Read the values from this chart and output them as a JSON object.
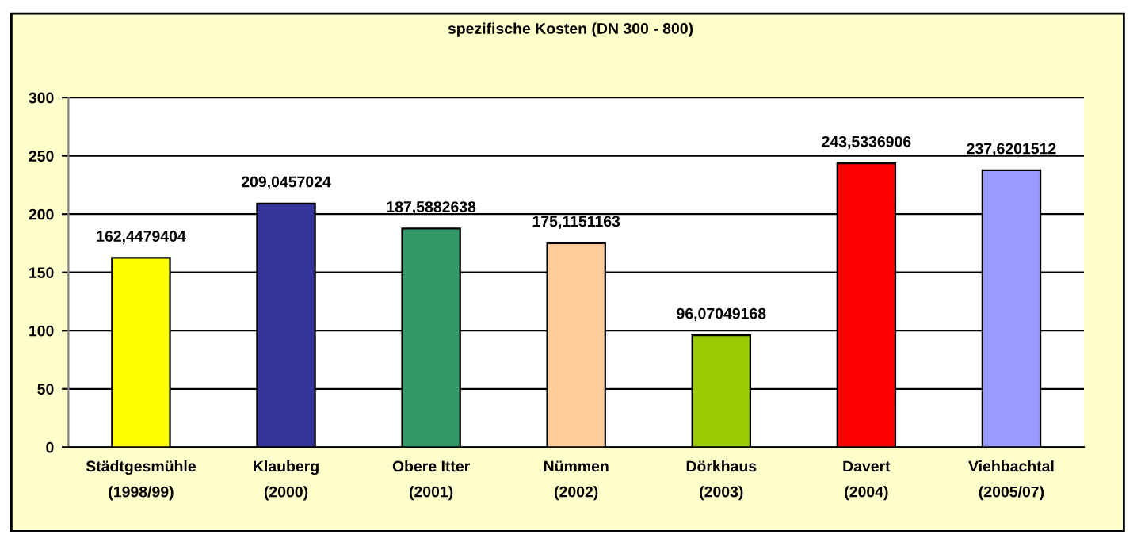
{
  "chart_data": {
    "type": "bar",
    "title": "spezifische Kosten (DN 300 - 800)",
    "categories": [
      "Städtgesmühle\n(1998/99)",
      "Klauberg\n(2000)",
      "Obere Itter\n(2001)",
      "Nümmen\n(2002)",
      "Dörkhaus\n(2003)",
      "Davert\n(2004)",
      "Viehbachtal\n(2005/07)"
    ],
    "values": [
      162.4479404,
      209.0457024,
      187.5882638,
      175.1151163,
      96.07049168,
      243.5336906,
      237.6201512
    ],
    "colors": [
      "#ffff00",
      "#333399",
      "#339966",
      "#ffcc99",
      "#99cc00",
      "#ff0000",
      "#9999ff"
    ],
    "value_labels": [
      "162,4479404",
      "209,0457024",
      "187,5882638",
      "175,1151163",
      "96,07049168",
      "243,5336906",
      "237,6201512"
    ],
    "ylim": [
      0,
      300
    ],
    "yticks": [
      0,
      50,
      100,
      150,
      200,
      250,
      300
    ],
    "grid": "y",
    "legend": false
  }
}
